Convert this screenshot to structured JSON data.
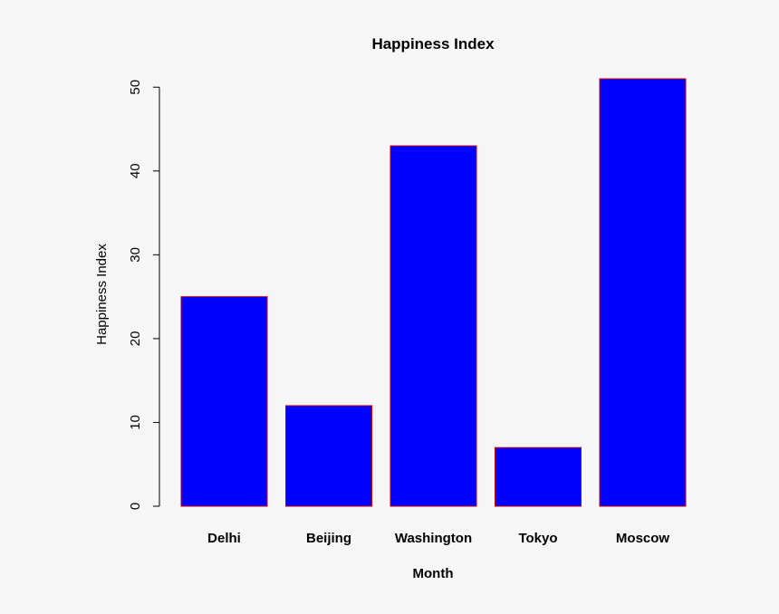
{
  "chart_data": {
    "type": "bar",
    "title": "Happiness Index",
    "xlabel": "Month",
    "ylabel": "Happiness Index",
    "categories": [
      "Delhi",
      "Beijing",
      "Washington",
      "Tokyo",
      "Moscow"
    ],
    "values": [
      25,
      12,
      43,
      7,
      51
    ],
    "yticks": [
      "0",
      "10",
      "20",
      "30",
      "40",
      "50"
    ],
    "ylim": [
      0,
      51
    ],
    "bar_color": "#0000ff",
    "bar_border_color": "#cc0000",
    "grid": false,
    "legend": "none"
  }
}
